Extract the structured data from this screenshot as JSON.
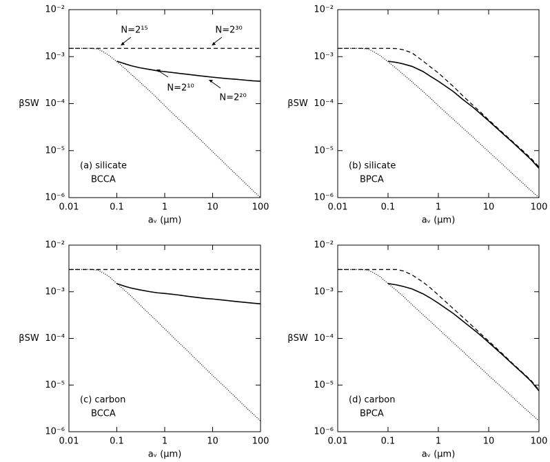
{
  "chart_data": [
    {
      "type": "line",
      "log_x": true,
      "log_y": true,
      "xlabel": "aᵥ (μm)",
      "ylabel": "βSW",
      "panel_label": [
        "(a) silicate",
        "BCCA"
      ],
      "annotations": [
        "N=2¹⁵",
        "N=2³⁰",
        "N=2¹⁰",
        "N=2²⁰"
      ],
      "xlim": [
        0.01,
        100
      ],
      "xticks": [
        0.01,
        0.1,
        1,
        10,
        100
      ],
      "ylim": [
        1e-06,
        0.01
      ],
      "yticks": [
        {
          "value": 0.01,
          "label": "10⁻²"
        },
        {
          "value": 0.001,
          "label": "10⁻³"
        },
        {
          "value": 0.0001,
          "label": "10⁻⁴"
        },
        {
          "value": 1e-05,
          "label": "10⁻⁵"
        },
        {
          "value": 1e-06,
          "label": "10⁻⁶"
        }
      ],
      "x": [
        0.01,
        0.02,
        0.03,
        0.04,
        0.05,
        0.07,
        0.1,
        0.15,
        0.2,
        0.3,
        0.5,
        0.7,
        1,
        2,
        3,
        5,
        7,
        10,
        20,
        30,
        50,
        70,
        100
      ],
      "series": [
        {
          "color": "#000000",
          "dash": "dashed",
          "values": [
            0.0015,
            0.0015,
            0.0015,
            0.0015,
            0.0015,
            0.0015,
            0.0015,
            0.0015,
            0.0015,
            0.0015,
            0.0015,
            0.0015,
            0.0015,
            0.0015,
            0.0015,
            0.0015,
            0.0015,
            0.0015,
            0.0015,
            0.0015,
            0.0015,
            0.0015,
            0.0015
          ]
        },
        {
          "color": "#000000",
          "dash": "solid",
          "values": [
            null,
            null,
            null,
            null,
            null,
            null,
            0.0008,
            0.0007,
            0.00064,
            0.00058,
            0.00053,
            0.0005,
            0.00048,
            0.00044,
            0.00042,
            0.000395,
            0.00038,
            0.000365,
            0.00034,
            0.00033,
            0.000315,
            0.000305,
            0.0003
          ]
        },
        {
          "color": "#000000",
          "dash": "dotted",
          "values": [
            0.0015,
            0.0015,
            0.0015,
            0.00145,
            0.0013,
            0.00105,
            0.00078,
            0.00055,
            0.00042,
            0.00029,
            0.00018,
            0.00013,
            9e-05,
            4.6e-05,
            3.1e-05,
            1.9e-05,
            1.35e-05,
            9.5e-06,
            4.8e-06,
            3.2e-06,
            1.95e-06,
            1.4e-06,
            1e-06
          ]
        }
      ]
    },
    {
      "type": "line",
      "log_x": true,
      "log_y": true,
      "xlabel": "aᵥ (μm)",
      "ylabel": "βSW",
      "panel_label": [
        "(b) silicate",
        "BPCA"
      ],
      "xlim": [
        0.01,
        100
      ],
      "xticks": [
        0.01,
        0.1,
        1,
        10,
        100
      ],
      "ylim": [
        1e-06,
        0.01
      ],
      "yticks": [
        {
          "value": 0.01,
          "label": "10⁻²"
        },
        {
          "value": 0.001,
          "label": "10⁻³"
        },
        {
          "value": 0.0001,
          "label": "10⁻⁴"
        },
        {
          "value": 1e-05,
          "label": "10⁻⁵"
        },
        {
          "value": 1e-06,
          "label": "10⁻⁶"
        }
      ],
      "x": [
        0.01,
        0.02,
        0.03,
        0.04,
        0.05,
        0.07,
        0.1,
        0.15,
        0.2,
        0.3,
        0.5,
        0.7,
        1,
        2,
        3,
        5,
        7,
        10,
        20,
        30,
        50,
        70,
        100
      ],
      "series": [
        {
          "color": "#000000",
          "dash": "dashed",
          "values": [
            0.0015,
            0.0015,
            0.0015,
            0.0015,
            0.0015,
            0.0015,
            0.0015,
            0.00148,
            0.0014,
            0.0012,
            0.0008,
            0.0006,
            0.00045,
            0.00023,
            0.00015,
            9e-05,
            6.5e-05,
            4.5e-05,
            2.3e-05,
            1.55e-05,
            9.5e-06,
            6.8e-06,
            4.5e-06
          ]
        },
        {
          "color": "#000000",
          "dash": "solid",
          "values": [
            null,
            null,
            null,
            null,
            null,
            null,
            0.0008,
            0.00075,
            0.0007,
            0.00062,
            0.00048,
            0.00038,
            0.0003,
            0.00018,
            0.000125,
            8.2e-05,
            6e-05,
            4.3e-05,
            2.2e-05,
            1.5e-05,
            9e-06,
            6.4e-06,
            4.2e-06
          ]
        },
        {
          "color": "#000000",
          "dash": "dotted",
          "values": [
            0.0015,
            0.0015,
            0.0015,
            0.00145,
            0.0013,
            0.00105,
            0.00078,
            0.00055,
            0.00042,
            0.00029,
            0.00018,
            0.00013,
            9e-05,
            4.6e-05,
            3.1e-05,
            1.9e-05,
            1.35e-05,
            9.5e-06,
            4.8e-06,
            3.2e-06,
            1.95e-06,
            1.4e-06,
            1e-06
          ]
        }
      ]
    },
    {
      "type": "line",
      "log_x": true,
      "log_y": true,
      "xlabel": "aᵥ (μm)",
      "ylabel": "βSW",
      "panel_label": [
        "(c) carbon",
        "BCCA"
      ],
      "xlim": [
        0.01,
        100
      ],
      "xticks": [
        0.01,
        0.1,
        1,
        10,
        100
      ],
      "ylim": [
        1e-06,
        0.01
      ],
      "yticks": [
        {
          "value": 0.01,
          "label": "10⁻²"
        },
        {
          "value": 0.001,
          "label": "10⁻³"
        },
        {
          "value": 0.0001,
          "label": "10⁻⁴"
        },
        {
          "value": 1e-05,
          "label": "10⁻⁵"
        },
        {
          "value": 1e-06,
          "label": "10⁻⁶"
        }
      ],
      "x": [
        0.01,
        0.02,
        0.03,
        0.04,
        0.05,
        0.07,
        0.1,
        0.15,
        0.2,
        0.3,
        0.5,
        0.7,
        1,
        2,
        3,
        5,
        7,
        10,
        20,
        30,
        50,
        70,
        100
      ],
      "series": [
        {
          "color": "#000000",
          "dash": "dashed",
          "values": [
            0.003,
            0.003,
            0.003,
            0.003,
            0.003,
            0.003,
            0.003,
            0.003,
            0.003,
            0.003,
            0.003,
            0.003,
            0.003,
            0.003,
            0.003,
            0.003,
            0.003,
            0.003,
            0.003,
            0.003,
            0.003,
            0.003,
            0.003
          ]
        },
        {
          "color": "#000000",
          "dash": "solid",
          "values": [
            null,
            null,
            null,
            null,
            null,
            null,
            0.0015,
            0.0013,
            0.0012,
            0.0011,
            0.001,
            0.00095,
            0.00092,
            0.00085,
            0.0008,
            0.00075,
            0.00072,
            0.0007,
            0.00065,
            0.00062,
            0.00059,
            0.00057,
            0.00055
          ]
        },
        {
          "color": "#000000",
          "dash": "dotted",
          "values": [
            0.003,
            0.003,
            0.003,
            0.0029,
            0.0026,
            0.0021,
            0.0015,
            0.00105,
            0.0008,
            0.00053,
            0.00032,
            0.00023,
            0.00016,
            8e-05,
            5.4e-05,
            3.2e-05,
            2.3e-05,
            1.6e-05,
            8.2e-06,
            5.5e-06,
            3.3e-06,
            2.4e-06,
            1.7e-06
          ]
        }
      ]
    },
    {
      "type": "line",
      "log_x": true,
      "log_y": true,
      "xlabel": "aᵥ (μm)",
      "ylabel": "βSW",
      "panel_label": [
        "(d) carbon",
        "BPCA"
      ],
      "xlim": [
        0.01,
        100
      ],
      "xticks": [
        0.01,
        0.1,
        1,
        10,
        100
      ],
      "ylim": [
        1e-06,
        0.01
      ],
      "yticks": [
        {
          "value": 0.01,
          "label": "10⁻²"
        },
        {
          "value": 0.001,
          "label": "10⁻³"
        },
        {
          "value": 0.0001,
          "label": "10⁻⁴"
        },
        {
          "value": 1e-05,
          "label": "10⁻⁵"
        },
        {
          "value": 1e-06,
          "label": "10⁻⁶"
        }
      ],
      "x": [
        0.01,
        0.02,
        0.03,
        0.04,
        0.05,
        0.07,
        0.1,
        0.15,
        0.2,
        0.3,
        0.5,
        0.7,
        1,
        2,
        3,
        5,
        7,
        10,
        20,
        30,
        50,
        70,
        100
      ],
      "series": [
        {
          "color": "#000000",
          "dash": "dashed",
          "values": [
            0.003,
            0.003,
            0.003,
            0.003,
            0.003,
            0.003,
            0.003,
            0.003,
            0.0028,
            0.0023,
            0.0016,
            0.0012,
            0.00085,
            0.00043,
            0.00029,
            0.000175,
            0.000125,
            8.8e-05,
            4.4e-05,
            2.9e-05,
            1.75e-05,
            1.25e-05,
            7.8e-06
          ]
        },
        {
          "color": "#000000",
          "dash": "solid",
          "values": [
            null,
            null,
            null,
            null,
            null,
            null,
            0.0015,
            0.0014,
            0.0013,
            0.00115,
            0.0009,
            0.00073,
            0.00057,
            0.00034,
            0.00024,
            0.000155,
            0.000115,
            8.2e-05,
            4.2e-05,
            2.8e-05,
            1.7e-05,
            1.2e-05,
            7.5e-06
          ]
        },
        {
          "color": "#000000",
          "dash": "dotted",
          "values": [
            0.003,
            0.003,
            0.003,
            0.0029,
            0.0026,
            0.0021,
            0.0015,
            0.00105,
            0.0008,
            0.00053,
            0.00032,
            0.00023,
            0.00016,
            8e-05,
            5.4e-05,
            3.2e-05,
            2.3e-05,
            1.6e-05,
            8.2e-06,
            5.5e-06,
            3.3e-06,
            2.4e-06,
            1.7e-06
          ]
        }
      ]
    }
  ]
}
